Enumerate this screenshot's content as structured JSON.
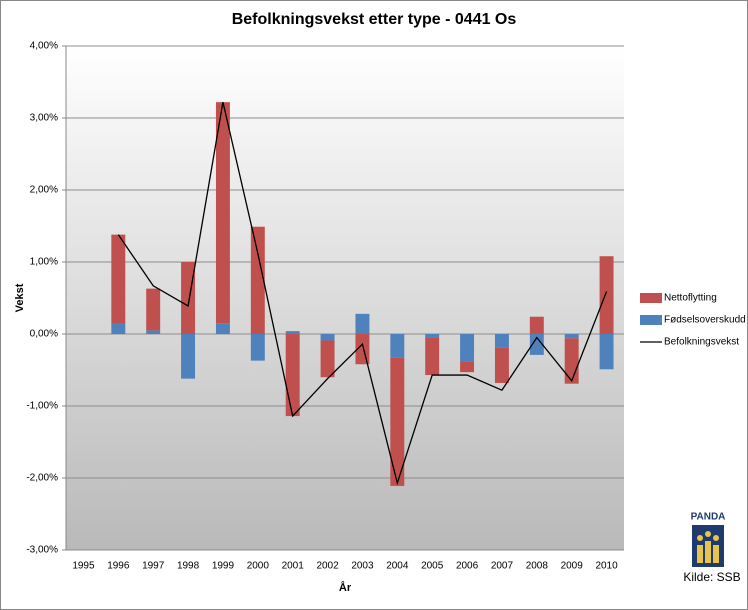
{
  "chart_data": {
    "type": "stacked-bar-line",
    "title": "Befolkningsvekst etter type - 0441 Os",
    "y_label": "Vekst",
    "x_label": "År",
    "categories": [
      "1995",
      "1996",
      "1997",
      "1998",
      "1999",
      "2000",
      "2001",
      "2002",
      "2003",
      "2004",
      "2005",
      "2006",
      "2007",
      "2008",
      "2009",
      "2010"
    ],
    "series": [
      {
        "name": "Fødselsoverskudd",
        "color": "#4f81bd",
        "kind": "bar",
        "values": [
          null,
          0.14,
          0.05,
          -0.62,
          0.15,
          -0.37,
          0.04,
          -0.09,
          0.28,
          -0.33,
          -0.05,
          -0.38,
          -0.19,
          -0.29,
          -0.06,
          -0.49
        ]
      },
      {
        "name": "Nettoflytting",
        "color": "#c0504d",
        "kind": "bar",
        "values": [
          null,
          1.24,
          0.58,
          1.0,
          3.07,
          1.49,
          -1.14,
          -0.51,
          -0.42,
          -1.78,
          -0.52,
          -0.15,
          -0.49,
          0.24,
          -0.63,
          1.08
        ]
      },
      {
        "name": "Befolkningsvekst",
        "color": "#000000",
        "kind": "line",
        "values": [
          null,
          1.38,
          0.67,
          0.39,
          3.22,
          1.12,
          -1.14,
          -0.62,
          -0.14,
          -2.07,
          -0.57,
          -0.57,
          -0.78,
          -0.05,
          -0.65,
          0.59
        ]
      }
    ],
    "legend_order": [
      1,
      0,
      2
    ],
    "ylim": [
      -3,
      4
    ],
    "yticks": [
      {
        "value": -3,
        "label": "-3,00%"
      },
      {
        "value": -2,
        "label": "-2,00%"
      },
      {
        "value": -1,
        "label": "-1,00%"
      },
      {
        "value": 0,
        "label": "0,00%"
      },
      {
        "value": 1,
        "label": "1,00%"
      },
      {
        "value": 2,
        "label": "2,00%"
      },
      {
        "value": 3,
        "label": "3,00%"
      },
      {
        "value": 4,
        "label": "4,00%"
      }
    ],
    "grid": true,
    "legend": "right",
    "logo": "PANDA",
    "source": "Kilde: SSB"
  }
}
